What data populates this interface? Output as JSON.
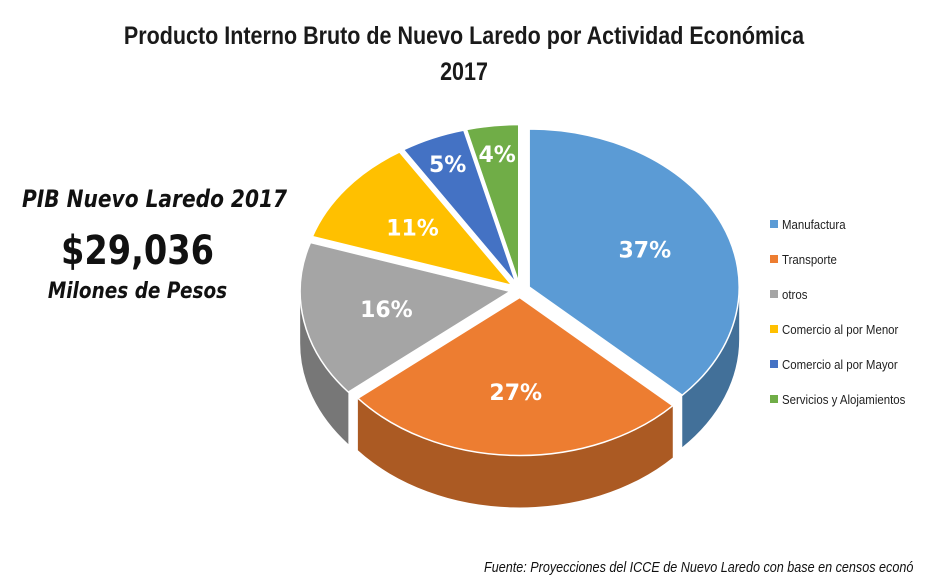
{
  "header": {
    "title_line1": "Producto Interno Bruto de Nuevo Laredo por Actividad Económica",
    "title_line2": "2017"
  },
  "summary": {
    "label": "PIB Nuevo Laredo 2017",
    "value": "$29,036",
    "unit": "Milones de Pesos"
  },
  "chart_data": {
    "type": "pie",
    "title": "Producto Interno Bruto de Nuevo Laredo por Actividad Económica 2017",
    "categories": [
      "Manufactura",
      "Transporte",
      "otros",
      "Comercio al por Menor",
      "Comercio al por Mayor",
      "Servicios y Alojamientos"
    ],
    "values": [
      37,
      27,
      16,
      11,
      5,
      4
    ],
    "labels": [
      "37%",
      "27%",
      "16%",
      "11%",
      "5%",
      "4%"
    ],
    "colors": [
      "#5b9bd5",
      "#ed7d31",
      "#a5a5a5",
      "#ffc000",
      "#4472c4",
      "#70ad47"
    ],
    "legend_position": "right",
    "style": "3d-exploded"
  },
  "source_note": "Fuente: Proyecciones del ICCE de Nuevo Laredo con base en censos econó"
}
